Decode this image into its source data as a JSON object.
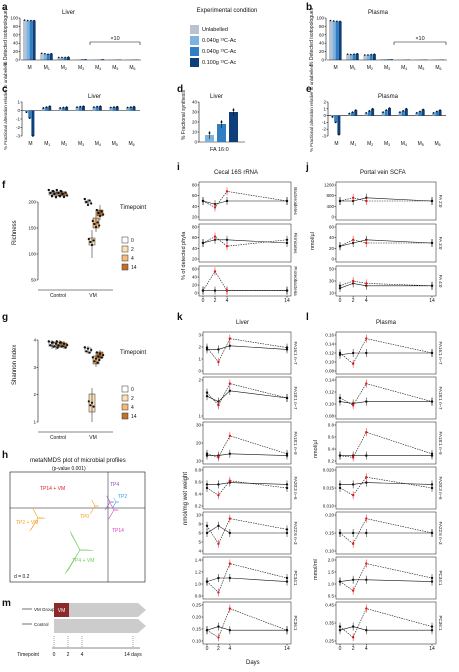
{
  "panels": {
    "a": {
      "letter": "a",
      "title": "Liver",
      "ylabel": "% Detected isotopologues",
      "note": "×10",
      "categories": [
        "M",
        "M1",
        "M2",
        "M3",
        "M4",
        "M5",
        "M6"
      ]
    },
    "b": {
      "letter": "b",
      "title": "Plasma",
      "ylabel": "% Detected isotopologues",
      "note": "×10",
      "categories": [
        "M",
        "M1",
        "M2",
        "M3",
        "M4",
        "M5",
        "M6"
      ]
    },
    "c": {
      "letter": "c",
      "title": "Liver",
      "ylabel": "% Fractional alteration relative to unlabelled",
      "categories": [
        "M",
        "M1",
        "M2",
        "M3",
        "M4",
        "M5",
        "M6"
      ]
    },
    "d": {
      "letter": "d",
      "title": "Liver",
      "ylabel": "% Fractional synthesis",
      "xlabel": "FA 16:0"
    },
    "e": {
      "letter": "e",
      "title": "Plasma",
      "ylabel": "% Fractional alteration relative to unlabelled",
      "categories": [
        "M",
        "M1",
        "M2",
        "M3",
        "M4",
        "M5",
        "M6"
      ]
    },
    "f": {
      "letter": "f",
      "ylabel": "Richness",
      "xticks": [
        "Control",
        "VM"
      ],
      "legend_title": "Timepoint",
      "legend": [
        "0",
        "2",
        "4",
        "14"
      ]
    },
    "g": {
      "letter": "g",
      "ylabel": "Shannon Index",
      "xticks": [
        "Control",
        "VM"
      ],
      "legend_title": "Timepoint",
      "legend": [
        "0",
        "2",
        "4",
        "14"
      ]
    },
    "h": {
      "letter": "h",
      "title": "metaNMDS plot of microbial profiles",
      "subtitle": "(p-value 0.001)",
      "d_label": "d = 0.2",
      "labels": [
        "TP14 + VM",
        "TP2 + VM",
        "TP0",
        "TP4",
        "TP2",
        "TP14",
        "TP4 + VM"
      ]
    },
    "i": {
      "letter": "i",
      "title": "Cecal 16S rRNA",
      "ylabel": "% of detected phyla",
      "xlabel": "Days",
      "rows": [
        "Bacteroidetes",
        "Firmicutes",
        "Proteobacteria"
      ]
    },
    "j": {
      "letter": "j",
      "title": "Portal vein SCFA",
      "ylabel": "nmol/µl",
      "rows": [
        "FA 2:0",
        "FA 3:0",
        "FA 4:0"
      ]
    },
    "k": {
      "letter": "k",
      "title": "Liver",
      "ylabel": "nmol/mg wet weight",
      "xlabel": "Days",
      "rows": [
        "FA16:1 n–7",
        "FA18:1 n–7",
        "FA18:1 n–9",
        "FA20:3 n–6",
        "FA22:6 n–3",
        "PC34:1",
        "PC36:1"
      ]
    },
    "l": {
      "letter": "l",
      "title": "Plasma",
      "ylabel1": "nmol/µl",
      "ylabel2": "mmol/ml",
      "rows": [
        "FA16:1 n–7",
        "FA18:1 n–7",
        "FA18:1 n–9",
        "FA20:3 n–6",
        "FA22:6 n–3",
        "PC34:1",
        "PC36:1"
      ]
    },
    "m": {
      "letter": "m",
      "vm_group": "VM Group",
      "control": "Control",
      "vm_box": "VM",
      "timepoint": "Timepoint",
      "days": [
        "0",
        "2",
        "4",
        "14 days"
      ]
    }
  },
  "legend_ab": {
    "title": "Experimental condition",
    "items": [
      "Unlabelled",
      "0.040g ¹³C-Ac",
      "0.040g ¹³C-Ac",
      "0.100g ¹³C-Ac"
    ]
  },
  "colors": {
    "unlabelled": "#b9c3cf",
    "c1": "#7fb3df",
    "c2": "#2f7fc4",
    "c3": "#0e3f7a",
    "red": "#e21a1a",
    "tp0": "#ffffff",
    "tp2": "#fde0b8",
    "tp4": "#f5b97a",
    "tp14": "#c0722b",
    "green": "#6ccf55",
    "orange": "#f5a023",
    "purple": "#8b4dc9",
    "magenta": "#e040c8",
    "blue": "#2aa0e6"
  },
  "ticks": {
    "a_y": [
      "100",
      "80",
      "60",
      "40",
      "20",
      "0"
    ],
    "c_y": [
      "1",
      "0",
      "-1",
      "-2",
      "-3"
    ],
    "d_y": [
      "40",
      "30",
      "20",
      "10",
      "0"
    ],
    "e_y": [
      "2",
      "1",
      "0",
      "-1",
      "-2",
      "-3"
    ],
    "f_y": [
      "200",
      "150",
      "100",
      "50"
    ],
    "g_y": [
      "4",
      "3",
      "2",
      "1"
    ],
    "days": [
      "0",
      "2",
      "4",
      "14"
    ],
    "j1": [
      "1200",
      "800",
      "400",
      "0"
    ],
    "j2": [
      "60",
      "40",
      "20",
      "0"
    ],
    "j3": [
      "50",
      "30",
      "10"
    ],
    "i1": [
      "80",
      "60",
      "40",
      "20"
    ],
    "i2": [
      "80",
      "60",
      "40",
      "20"
    ],
    "i3": [
      "60",
      "40",
      "20",
      "0"
    ],
    "k1": [
      "3",
      "2",
      "1",
      "0"
    ],
    "k2": [
      "2",
      "1"
    ],
    "k3": [
      "30",
      "20",
      "10"
    ],
    "k4": [
      "0.8",
      "0.6",
      "0.4",
      "0.2"
    ],
    "k5": [
      "10",
      "8",
      "6",
      "5",
      "4"
    ],
    "k6": [
      "1.4",
      "1.2",
      "1.0",
      "0.8"
    ],
    "k7": [
      "0.25",
      "0.20",
      "0.15",
      "0.10"
    ],
    "l1": [
      "0.16",
      "0.14",
      "0.12",
      "0.10",
      "0.08"
    ],
    "l2": [
      "0.14",
      "0.12",
      "0.10",
      "0.08"
    ],
    "l3": [
      "0.8",
      "0.6",
      "0.4",
      "0.2"
    ],
    "l4": [
      "0.020",
      "0.015",
      "0.010"
    ],
    "l5": [
      "0.20",
      "0.15",
      "0.10"
    ],
    "l6": [
      "2.0",
      "1.5",
      "1.0",
      "0.5"
    ],
    "l7": [
      "0.45",
      "0.35",
      "0.25"
    ]
  }
}
